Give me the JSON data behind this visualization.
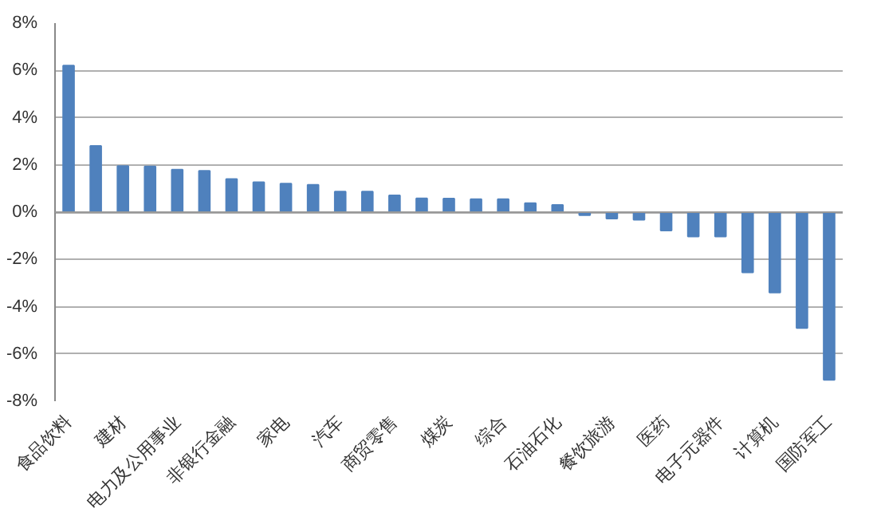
{
  "chart_data": {
    "type": "bar",
    "categories": [
      "食品饮料",
      null,
      "建材",
      null,
      "电力及公用事业",
      null,
      "非银行金融",
      null,
      "家电",
      null,
      "汽车",
      null,
      "商贸零售",
      null,
      "煤炭",
      null,
      "综合",
      null,
      "石油石化",
      null,
      "餐饮旅游",
      null,
      "医药",
      null,
      "电子元器件",
      null,
      "计算机",
      null,
      "国防军工"
    ],
    "values": [
      6.2,
      2.8,
      1.95,
      1.93,
      1.8,
      1.75,
      1.4,
      1.27,
      1.21,
      1.16,
      0.87,
      0.87,
      0.71,
      0.58,
      0.57,
      0.55,
      0.55,
      0.38,
      0.3,
      -0.13,
      -0.27,
      -0.32,
      -0.78,
      -1.03,
      -1.03,
      -2.55,
      -3.4,
      -4.9,
      -7.1
    ],
    "color": "#4f81bd",
    "ylim": [
      -8,
      8
    ],
    "yticks": [
      {
        "value": -8,
        "label": "-8%"
      },
      {
        "value": -6,
        "label": "-6%"
      },
      {
        "value": -4,
        "label": "-4%"
      },
      {
        "value": -2,
        "label": "-2%"
      },
      {
        "value": 0,
        "label": "0%"
      },
      {
        "value": 2,
        "label": "2%"
      },
      {
        "value": 4,
        "label": "4%"
      },
      {
        "value": 6,
        "label": "6%"
      },
      {
        "value": 8,
        "label": "8%"
      }
    ],
    "grid": "y"
  }
}
